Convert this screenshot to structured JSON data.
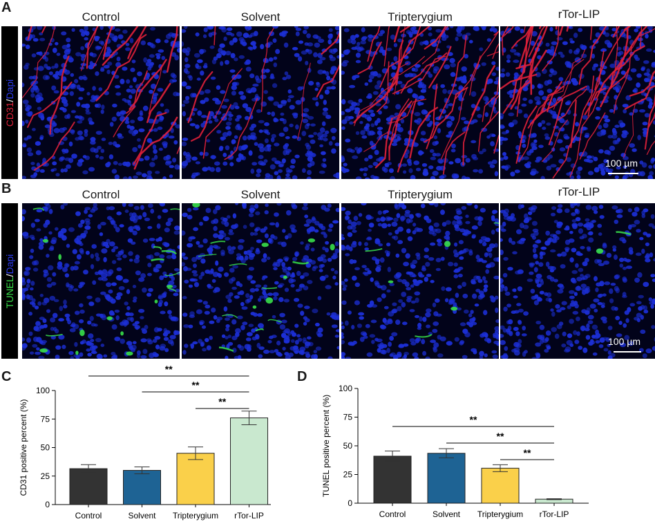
{
  "panel_labels": [
    "A",
    "B",
    "C",
    "D"
  ],
  "groups": [
    "Control",
    "Solvent",
    "Tripterygium",
    "rTor-LIP"
  ],
  "row_a": {
    "stain_marker": "CD31",
    "stain_sep": "/",
    "stain_nuc": "Dapi",
    "scale_label": "100 µm"
  },
  "row_b": {
    "stain_marker": "TUNEL",
    "stain_sep": "/",
    "stain_nuc": "Dapi",
    "scale_label": "100 µm"
  },
  "colors": {
    "nuclei": "#1c2fd6",
    "cd31": "#e0203a",
    "tunel": "#38e04a",
    "bar_fills": [
      "#333333",
      "#1e6394",
      "#fad04a",
      "#c9e8cf"
    ]
  },
  "chart_data": [
    {
      "type": "bar",
      "ylabel": "CD31 positive percent (%)",
      "categories": [
        "Control",
        "Solvent",
        "Tripterygium",
        "rTor-LIP"
      ],
      "values": [
        31.5,
        30,
        45,
        76
      ],
      "errors": [
        3.5,
        3,
        5.5,
        6
      ],
      "ylim": [
        0,
        100
      ],
      "yticks": [
        0,
        25,
        50,
        75,
        100
      ],
      "significance": [
        {
          "from": "Control",
          "to": "rTor-LIP",
          "label": "**"
        },
        {
          "from": "Solvent",
          "to": "rTor-LIP",
          "label": "**"
        },
        {
          "from": "Tripterygium",
          "to": "rTor-LIP",
          "label": "**"
        }
      ]
    },
    {
      "type": "bar",
      "ylabel": "TUNEL positive percent (%)",
      "categories": [
        "Control",
        "Solvent",
        "Tripterygium",
        "rTor-LIP"
      ],
      "values": [
        41,
        43.5,
        30.5,
        3.5
      ],
      "errors": [
        4.5,
        4,
        3,
        0.4
      ],
      "ylim": [
        0,
        100
      ],
      "yticks": [
        0,
        25,
        50,
        75,
        100
      ],
      "significance": [
        {
          "from": "Control",
          "to": "rTor-LIP",
          "label": "**"
        },
        {
          "from": "Solvent",
          "to": "rTor-LIP",
          "label": "**"
        },
        {
          "from": "Tripterygium",
          "to": "rTor-LIP",
          "label": "**"
        }
      ]
    }
  ]
}
